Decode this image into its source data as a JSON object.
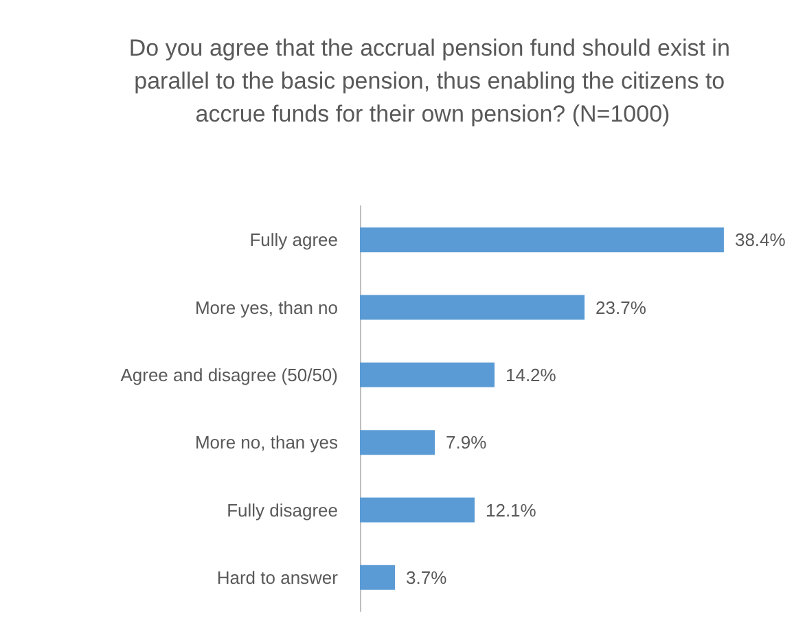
{
  "chart_data": {
    "type": "bar",
    "orientation": "horizontal",
    "title": "Do you agree that the accrual pension fund should exist in parallel to the basic pension, thus enabling the citizens to accrue funds for their own pension? (N=1000)",
    "categories": [
      "Fully agree",
      "More yes, than no",
      "Agree and disagree (50/50)",
      "More no, than yes",
      "Fully disagree",
      "Hard to answer"
    ],
    "values": [
      38.4,
      23.7,
      14.2,
      7.9,
      12.1,
      3.7
    ],
    "value_labels": [
      "38.4%",
      "23.7%",
      "14.2%",
      "7.9%",
      "12.1%",
      "3.7%"
    ],
    "color": "#5b9bd5"
  }
}
